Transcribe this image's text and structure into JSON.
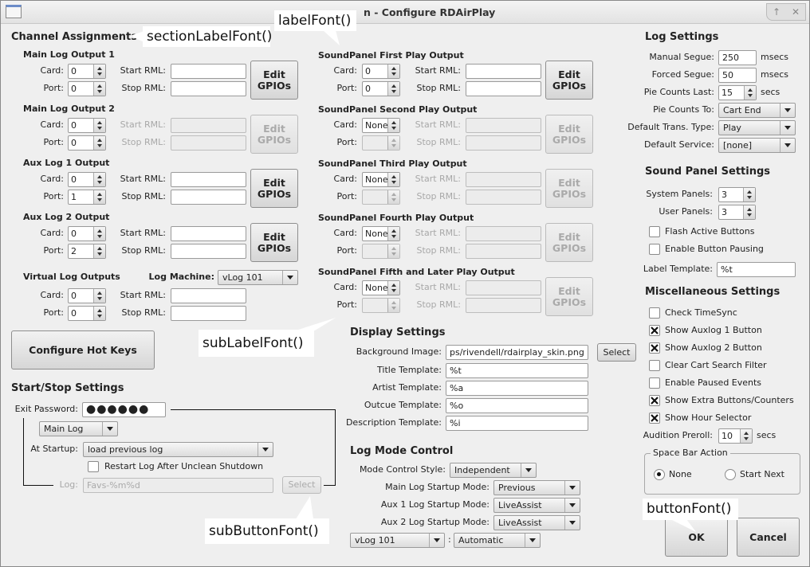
{
  "window": {
    "title": "n - Configure RDAirPlay",
    "shade_icon": "↑",
    "close_icon": "✕"
  },
  "common": {
    "card_label": "Card:",
    "port_label": "Port:",
    "start_rml_label": "Start RML:",
    "stop_rml_label": "Stop RML:",
    "edit_gpios_label": "Edit\nGPIOs"
  },
  "channel_assignments": {
    "title": "Channel Assignments",
    "outputs": [
      {
        "label": "Main Log Output 1",
        "card": "0",
        "port": "0",
        "start_rml": "",
        "stop_rml": "",
        "enabled": true
      },
      {
        "label": "Main Log Output 2",
        "card": "0",
        "port": "0",
        "start_rml": "",
        "stop_rml": "",
        "enabled": false
      },
      {
        "label": "Aux Log 1 Output",
        "card": "0",
        "port": "1",
        "start_rml": "",
        "stop_rml": "",
        "enabled": true
      },
      {
        "label": "Aux Log 2 Output",
        "card": "0",
        "port": "2",
        "start_rml": "",
        "stop_rml": "",
        "enabled": true
      }
    ],
    "virtual": {
      "label": "Virtual Log Outputs",
      "log_machine_label": "Log Machine:",
      "log_machine": "vLog 101",
      "card": "0",
      "port": "0",
      "start_rml": "",
      "stop_rml": ""
    }
  },
  "soundpanel_outputs": [
    {
      "label": "SoundPanel First Play Output",
      "card": "0",
      "port": "0",
      "enabled": true
    },
    {
      "label": "SoundPanel Second Play Output",
      "card": "None",
      "port": "",
      "enabled": false
    },
    {
      "label": "SoundPanel Third Play Output",
      "card": "None",
      "port": "",
      "enabled": false
    },
    {
      "label": "SoundPanel Fourth Play Output",
      "card": "None",
      "port": "",
      "enabled": false
    },
    {
      "label": "SoundPanel Fifth and Later Play Output",
      "card": "None",
      "port": "",
      "enabled": false
    }
  ],
  "hot_keys_button": "Configure Hot Keys",
  "start_stop": {
    "title": "Start/Stop Settings",
    "exit_password_label": "Exit Password:",
    "exit_password": "●●●●●●",
    "log_selector": "Main Log",
    "at_startup_label": "At Startup:",
    "at_startup": "load previous log",
    "restart_label": "Restart Log After Unclean Shutdown",
    "restart_checked": false,
    "log_label": "Log:",
    "log_value": "Favs-%m%d",
    "select_label": "Select"
  },
  "display": {
    "title": "Display Settings",
    "background_image_label": "Background Image:",
    "background_image": "ps/rivendell/rdairplay_skin.png",
    "select_label": "Select",
    "title_template_label": "Title Template:",
    "title_template": "%t",
    "artist_template_label": "Artist Template:",
    "artist_template": "%a",
    "outcue_template_label": "Outcue Template:",
    "outcue_template": "%o",
    "description_template_label": "Description Template:",
    "description_template": "%i"
  },
  "log_mode": {
    "title": "Log Mode Control",
    "style_label": "Mode Control Style:",
    "style": "Independent",
    "main_label": "Main Log Startup Mode:",
    "main": "Previous",
    "aux1_label": "Aux 1 Log Startup Mode:",
    "aux1": "LiveAssist",
    "aux2_label": "Aux 2 Log Startup Mode:",
    "aux2": "LiveAssist",
    "vlog_machine": "vLog 101",
    "separator": ":",
    "vlog_mode": "Automatic"
  },
  "log_settings": {
    "title": "Log Settings",
    "manual_segue_label": "Manual Segue:",
    "manual_segue": "250",
    "forced_segue_label": "Forced Segue:",
    "forced_segue": "50",
    "msecs": "msecs",
    "secs": "secs",
    "pie_last_label": "Pie Counts Last:",
    "pie_last": "15",
    "pie_to_label": "Pie Counts To:",
    "pie_to": "Cart End",
    "trans_label": "Default Trans. Type:",
    "trans": "Play",
    "service_label": "Default Service:",
    "service": "[none]"
  },
  "sound_panel_settings": {
    "title": "Sound Panel Settings",
    "system_label": "System Panels:",
    "system": "3",
    "user_label": "User Panels:",
    "user": "3",
    "checks": [
      {
        "label": "Flash Active Buttons",
        "checked": false
      },
      {
        "label": "Enable Button Pausing",
        "checked": false
      }
    ],
    "label_template_label": "Label Template:",
    "label_template": "%t"
  },
  "misc": {
    "title": "Miscellaneous Settings",
    "checks": [
      {
        "label": "Check TimeSync",
        "checked": false
      },
      {
        "label": "Show Auxlog 1 Button",
        "checked": true
      },
      {
        "label": "Show Auxlog 2 Button",
        "checked": true
      },
      {
        "label": "Clear Cart Search Filter",
        "checked": false
      },
      {
        "label": "Enable Paused Events",
        "checked": false
      },
      {
        "label": "Show Extra Buttons/Counters",
        "checked": true
      },
      {
        "label": "Show Hour Selector",
        "checked": true
      }
    ],
    "preroll_label": "Audition Preroll:",
    "preroll": "10",
    "secs": "secs"
  },
  "space_bar": {
    "title": "Space Bar Action",
    "options": [
      {
        "label": "None",
        "selected": true
      },
      {
        "label": "Start Next",
        "selected": false
      }
    ]
  },
  "buttons": {
    "ok": "OK",
    "cancel": "Cancel"
  },
  "callouts": {
    "label_font": "labelFont()",
    "section_label_font": "sectionLabelFont()",
    "sub_label_font": "subLabelFont()",
    "sub_button_font": "subButtonFont()",
    "button_font": "buttonFont()"
  }
}
